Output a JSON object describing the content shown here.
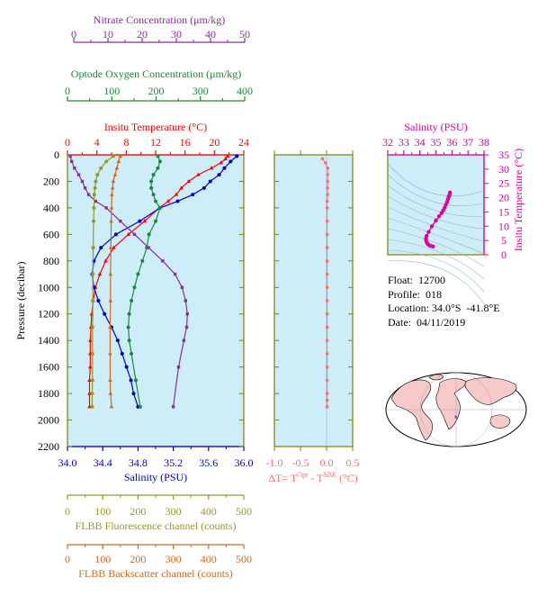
{
  "colors": {
    "background": "#cdeef8",
    "nitrate": "#8b2d9b",
    "oxygen": "#1a8a3a",
    "temperature": "#ff0000",
    "salinity": "#0000cc",
    "fluorescence": "#999922",
    "backscatter": "#d2691e",
    "delta": "#ff6f6f",
    "ts": "#e0009a",
    "frame": "#808000"
  },
  "axes": {
    "nitrate": {
      "label": "Nitrate Concentration (μm/kg)",
      "ticks": [
        "0",
        "10",
        "20",
        "30",
        "40",
        "50"
      ],
      "range": [
        0,
        50
      ]
    },
    "oxygen": {
      "label": "Optode Oxygen Concentration (μm/kg)",
      "ticks": [
        "0",
        "100",
        "200",
        "300",
        "400"
      ],
      "range": [
        0,
        400
      ]
    },
    "temperature": {
      "label": "Insitu Temperature (°C)",
      "ticks": [
        "0",
        "4",
        "8",
        "12",
        "16",
        "20",
        "24"
      ],
      "range": [
        0,
        24
      ]
    },
    "salinity": {
      "label": "Salinity (PSU)",
      "ticks": [
        "34.0",
        "34.4",
        "34.8",
        "35.2",
        "35.6",
        "36.0"
      ],
      "range": [
        34.0,
        36.0
      ]
    },
    "pressure": {
      "label": "Pressure (decibar)",
      "ticks": [
        "0",
        "200",
        "400",
        "600",
        "800",
        "1000",
        "1200",
        "1400",
        "1600",
        "1800",
        "2000",
        "2200"
      ],
      "range": [
        0,
        2200
      ]
    },
    "fluorescence": {
      "label": "FLBB Fluorescence channel (counts)",
      "ticks": [
        "0",
        "100",
        "200",
        "300",
        "400",
        "500"
      ],
      "range": [
        0,
        500
      ]
    },
    "backscatter": {
      "label": "FLBB Backscatter channel (counts)",
      "ticks": [
        "0",
        "100",
        "200",
        "300",
        "400",
        "500"
      ],
      "range": [
        0,
        500
      ]
    },
    "delta": {
      "label_main": "ΔT= T",
      "sup1": "Opt",
      "label_mid": " - T",
      "sup2": "SBE",
      "label_end": " (°C)",
      "ticks": [
        "-1.0",
        "-0.5",
        "0.0",
        "0.5"
      ],
      "range": [
        -1.0,
        0.5
      ]
    },
    "ts_salinity": {
      "label": "Salinity (PSU)",
      "ticks": [
        "32",
        "33",
        "34",
        "35",
        "36",
        "37",
        "38"
      ],
      "range": [
        32,
        38
      ]
    },
    "ts_temperature": {
      "label": "Insitu Temperature (°C)",
      "ticks": [
        "0",
        "5",
        "10",
        "15",
        "20",
        "25",
        "30",
        "35"
      ],
      "range": [
        0,
        35
      ]
    }
  },
  "info": {
    "float_label": "Float:",
    "float_value": "12700",
    "profile_label": "Profile:",
    "profile_value": "018",
    "location_label": "Location:",
    "location_value": "34.0°S  -41.8°E",
    "date_label": "Date:",
    "date_value": "04/11/2019"
  },
  "chart_data": [
    {
      "type": "line",
      "title": "",
      "ylabel": "Pressure (decibar)",
      "ylim": [
        2200,
        0
      ],
      "series": [
        {
          "name": "Insitu Temperature",
          "axis": "temperature",
          "x": [
            21.8,
            21.5,
            20.9,
            19.6,
            17.8,
            16.5,
            15.5,
            14.8,
            13.7,
            12.5,
            10.5,
            8.3,
            6.3,
            5.2,
            4.4,
            3.8,
            3.5,
            3.3,
            3.2,
            3.1,
            3.1,
            3.1,
            3.0,
            3.0,
            3.0
          ],
          "y": [
            10,
            30,
            60,
            100,
            150,
            200,
            250,
            300,
            350,
            400,
            500,
            600,
            700,
            800,
            900,
            1000,
            1100,
            1200,
            1300,
            1400,
            1500,
            1600,
            1700,
            1800,
            1900
          ]
        },
        {
          "name": "Salinity",
          "axis": "salinity",
          "x": [
            35.92,
            35.85,
            35.78,
            35.72,
            35.62,
            35.55,
            35.42,
            35.25,
            35.05,
            34.82,
            34.55,
            34.38,
            34.3,
            34.28,
            34.3,
            34.35,
            34.42,
            34.5,
            34.57,
            34.62,
            34.67,
            34.72,
            34.75,
            34.8
          ],
          "y": [
            10,
            50,
            100,
            150,
            200,
            250,
            300,
            350,
            400,
            500,
            600,
            700,
            800,
            900,
            1000,
            1100,
            1200,
            1300,
            1400,
            1500,
            1600,
            1700,
            1800,
            1900
          ]
        },
        {
          "name": "Optode Oxygen",
          "axis": "oxygen",
          "x": [
            205,
            210,
            205,
            195,
            190,
            190,
            195,
            200,
            210,
            200,
            185,
            180,
            170,
            160,
            152,
            145,
            140,
            138,
            140,
            145,
            155,
            165
          ],
          "y": [
            10,
            50,
            100,
            150,
            200,
            250,
            300,
            350,
            400,
            500,
            600,
            700,
            800,
            900,
            1000,
            1100,
            1200,
            1300,
            1400,
            1500,
            1700,
            1900
          ]
        },
        {
          "name": "Nitrate",
          "axis": "nitrate",
          "x": [
            0.8,
            1.2,
            2.0,
            3.2,
            4.2,
            5.0,
            6.0,
            8.0,
            11.0,
            15.0,
            19.0,
            23.0,
            27.0,
            30.5,
            32.5,
            33.5,
            34.0,
            33.8,
            33.0,
            31.5,
            30.0
          ],
          "y": [
            10,
            50,
            100,
            150,
            200,
            250,
            300,
            350,
            400,
            500,
            600,
            700,
            800,
            900,
            1000,
            1100,
            1200,
            1300,
            1400,
            1600,
            1900
          ]
        },
        {
          "name": "FLBB Fluorescence",
          "axis": "fluorescence",
          "x": [
            130,
            110,
            95,
            85,
            80,
            78,
            76,
            75,
            74,
            73,
            72,
            72,
            71,
            71,
            71,
            70,
            70
          ],
          "y": [
            10,
            50,
            100,
            150,
            200,
            250,
            300,
            400,
            500,
            700,
            900,
            1100,
            1300,
            1500,
            1700,
            1800,
            1900
          ]
        },
        {
          "name": "FLBB Backscatter",
          "axis": "backscatter",
          "x": [
            150,
            145,
            140,
            135,
            130,
            128,
            126,
            125,
            124,
            123,
            122,
            122,
            121,
            121,
            121,
            122,
            125
          ],
          "y": [
            10,
            50,
            100,
            150,
            200,
            250,
            300,
            400,
            500,
            700,
            900,
            1100,
            1300,
            1500,
            1700,
            1800,
            1900
          ]
        }
      ]
    },
    {
      "type": "scatter",
      "xlabel": "ΔT= T^Opt - T^SBE (°C)",
      "xlim": [
        -1.0,
        0.5
      ],
      "ylim": [
        2200,
        0
      ],
      "x": [
        -0.08,
        -0.02,
        0.02,
        0.02,
        0.02,
        0.02,
        0.02,
        0.01,
        0.01,
        0.01,
        0.01,
        0.01,
        0.01,
        0.01,
        0.01,
        0.01,
        0.01,
        0.01,
        0.01,
        0.01,
        0.01,
        0.01,
        0.01,
        0.01,
        0.01
      ],
      "y": [
        30,
        60,
        100,
        150,
        200,
        250,
        300,
        350,
        400,
        500,
        600,
        700,
        800,
        900,
        1000,
        1100,
        1200,
        1300,
        1400,
        1500,
        1600,
        1700,
        1800,
        1850,
        1900
      ]
    },
    {
      "type": "scatter",
      "title": "",
      "xlabel": "Salinity (PSU)",
      "ylabel": "Insitu Temperature (°C)",
      "xlim": [
        32,
        38
      ],
      "ylim": [
        0,
        35
      ],
      "x": [
        34.82,
        34.7,
        34.6,
        34.52,
        34.45,
        34.4,
        34.38,
        34.42,
        34.55,
        34.75,
        35.0,
        35.2,
        35.35,
        35.45,
        35.55,
        35.62,
        35.7,
        35.75,
        35.8,
        35.85,
        35.88
      ],
      "y": [
        2.9,
        3.1,
        3.3,
        3.6,
        4.1,
        4.8,
        5.6,
        6.6,
        8.0,
        10.0,
        12.0,
        13.5,
        14.6,
        15.5,
        16.5,
        17.5,
        18.5,
        19.5,
        20.3,
        21.0,
        21.8
      ]
    }
  ]
}
